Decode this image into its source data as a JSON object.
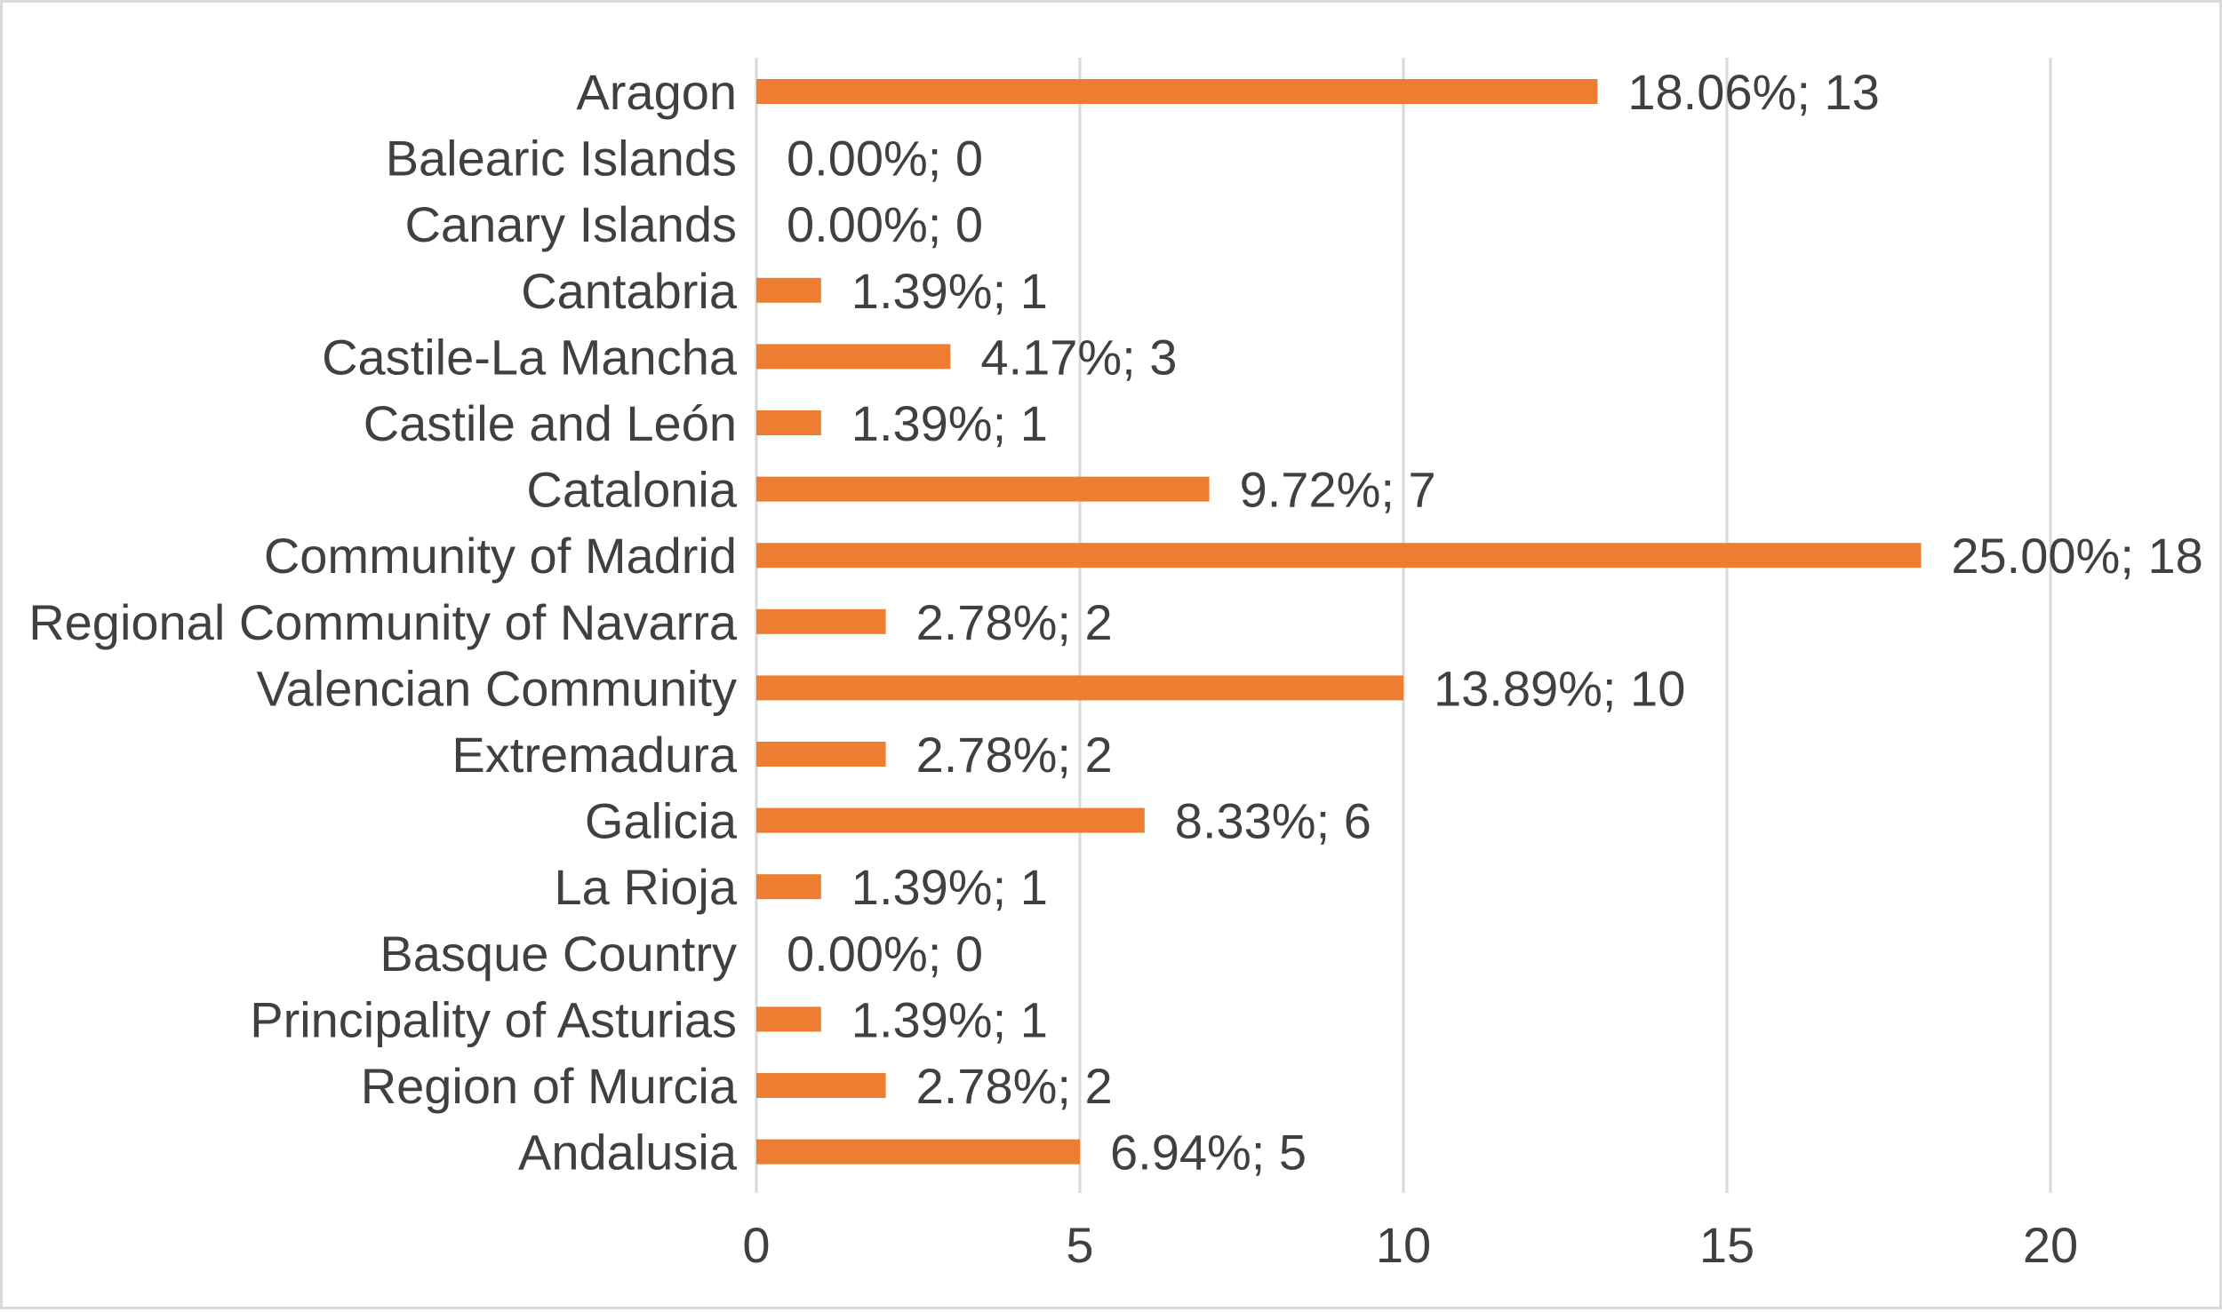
{
  "chart_data": {
    "type": "bar",
    "orientation": "horizontal",
    "title": "",
    "xlabel": "",
    "ylabel": "",
    "xlim": [
      0,
      20
    ],
    "x_ticks": [
      0,
      5,
      10,
      15,
      20
    ],
    "grid": "vertical",
    "legend": "none",
    "categories": [
      "Aragon",
      "Balearic Islands",
      "Canary Islands",
      "Cantabria",
      "Castile-La Mancha",
      "Castile and León",
      "Catalonia",
      "Community of Madrid",
      "Regional Community of Navarra",
      "Valencian Community",
      "Extremadura",
      "Galicia",
      "La Rioja",
      "Basque Country",
      "Principality of Asturias",
      "Region of Murcia",
      "Andalusia"
    ],
    "values": [
      13,
      0,
      0,
      1,
      3,
      1,
      7,
      18,
      2,
      10,
      2,
      6,
      1,
      0,
      1,
      2,
      5
    ],
    "data_labels": [
      "18.06%; 13",
      "0.00%; 0",
      "0.00%; 0",
      "1.39%; 1",
      "4.17%; 3",
      "1.39%; 1",
      "9.72%; 7",
      "25.00%; 18",
      "2.78%; 2",
      "13.89%; 10",
      "2.78%; 2",
      "8.33%; 6",
      "1.39%; 1",
      "0.00%; 0",
      "1.39%; 1",
      "2.78%; 2",
      "6.94%; 5"
    ],
    "colors": {
      "bar": "#ed7d31",
      "grid": "#d9d9d9",
      "text": "#404040"
    }
  }
}
